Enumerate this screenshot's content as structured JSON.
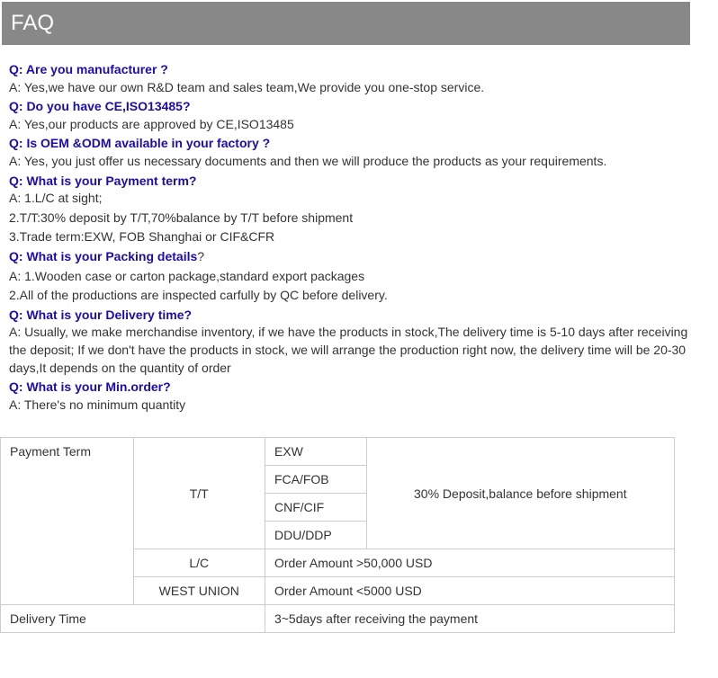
{
  "header": {
    "title": "FAQ"
  },
  "faq": [
    {
      "q": "Q: Are you manufacturer ?",
      "a": [
        "A: Yes,we have our own R&D team and sales team,We provide you one-stop service."
      ]
    },
    {
      "q": "Q: Do you have CE,ISO13485?",
      "a": [
        "A: Yes,our products are approved by CE,ISO13485"
      ]
    },
    {
      "q": "Q: Is OEM &ODM available in your factory ?",
      "a": [
        "A: Yes, you just offer us necessary documents and then we will produce the products as your requirements."
      ]
    },
    {
      "q": "Q: What is your Payment term?",
      "a": [
        "A: 1.L/C at sight;",
        "2.T/T:30% deposit by T/T,70%balance by T/T before shipment",
        "3.Trade term:EXW, FOB Shanghai or CIF&CFR"
      ]
    },
    {
      "q": "Q: What is your Packing details",
      "qmark": "?",
      "a": [
        "A: 1.Wooden case or carton package,standard export packages",
        "2.All of the productions are inspected carfully by QC before delivery."
      ]
    },
    {
      "q": "Q: What is your Delivery time?",
      "a": [
        "A: Usually, we make merchandise inventory, if we have the products in stock,The delivery time is 5-10 days after receiving the deposit; If we don't have the products in stock, we will arrange the production right now, the delivery time will be 20-30 days,It depends on the quantity of order"
      ]
    },
    {
      "q": "Q: What is your Min.order?",
      "a": [
        "A: There's no minimum quantity"
      ]
    }
  ],
  "table": {
    "r1c1": "Payment Term",
    "r1c2": "T/T",
    "r1c3": "EXW",
    "r1c4": "30% Deposit,balance before shipment",
    "r2c3": "FCA/FOB",
    "r3c3": "CNF/CIF",
    "r4c3": "DDU/DDP",
    "r5c2": "L/C",
    "r5c3": "Order Amount >50,000 USD",
    "r6c2": "WEST UNION",
    "r6c3": "Order Amount <5000 USD",
    "r7c1": "Delivery Time",
    "r7c3": "3~5days after receiving the payment"
  }
}
